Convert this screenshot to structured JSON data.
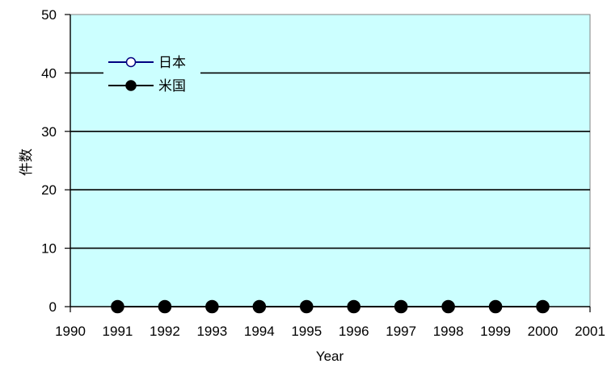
{
  "chart_data": {
    "type": "line",
    "title": "",
    "xlabel": "Year",
    "ylabel": "件数",
    "xlim": [
      1990,
      2001
    ],
    "ylim": [
      0,
      50
    ],
    "x_ticks": [
      1990,
      1991,
      1992,
      1993,
      1994,
      1995,
      1996,
      1997,
      1998,
      1999,
      2000,
      2001
    ],
    "y_ticks": [
      0,
      10,
      20,
      30,
      40,
      50
    ],
    "grid": "horizontal",
    "legend_position": "top-left",
    "plot_background": "#ccffff",
    "x": [
      1991,
      1992,
      1993,
      1994,
      1995,
      1996,
      1997,
      1998,
      1999,
      2000
    ],
    "series": [
      {
        "name": "日本",
        "marker": "open-circle",
        "color": "#000080",
        "values": [
          0,
          0,
          0,
          0,
          0,
          0,
          0,
          0,
          0,
          0
        ]
      },
      {
        "name": "米国",
        "marker": "filled-circle",
        "color": "#000000",
        "values": [
          0,
          0,
          0,
          0,
          0,
          0,
          0,
          0,
          0,
          0
        ]
      }
    ]
  }
}
